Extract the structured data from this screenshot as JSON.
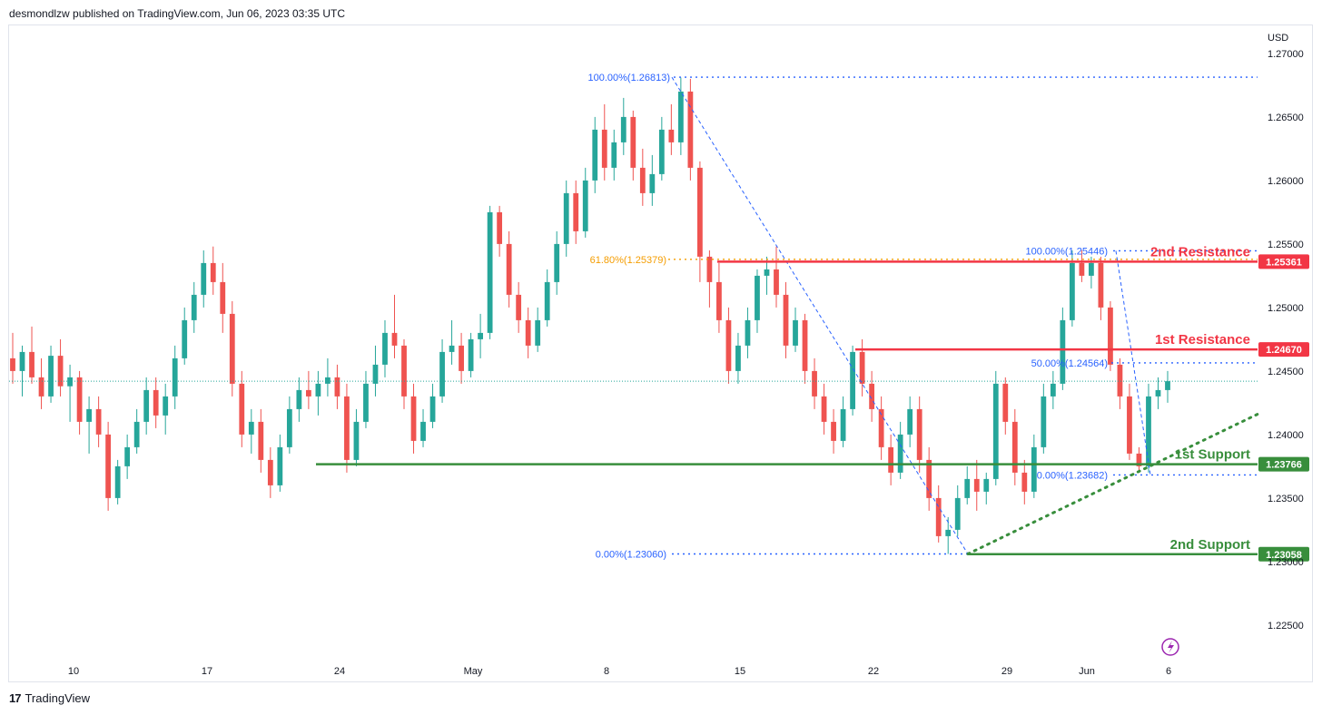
{
  "header": {
    "text": "desmondlzw published on TradingView.com, Jun 06, 2023 03:35 UTC"
  },
  "footer": {
    "brand": "TradingView",
    "logo_glyph": "17"
  },
  "colors": {
    "up": "#26a69a",
    "down": "#ef5350",
    "resistance": "#f23645",
    "support": "#388e3c",
    "fib": "#2962ff",
    "fib618": "#f59d00"
  },
  "chart_data": {
    "type": "candlestick",
    "currency": "USD",
    "ylim": [
      1.2225,
      1.2725
    ],
    "y_ticks": [
      "1.27000",
      "1.26500",
      "1.26000",
      "1.25500",
      "1.25000",
      "1.24500",
      "1.24000",
      "1.23500",
      "1.23000",
      "1.22500"
    ],
    "x_ticks": [
      "10",
      "17",
      "24",
      "May",
      "8",
      "15",
      "22",
      "29",
      "Jun",
      "6"
    ],
    "current_price": 1.2442,
    "levels": [
      {
        "name": "2nd Resistance",
        "value": "1.25361",
        "price": 1.25361,
        "kind": "resistance"
      },
      {
        "name": "1st Resistance",
        "value": "1.24670",
        "price": 1.2467,
        "kind": "resistance"
      },
      {
        "name": "1st Support",
        "value": "1.23766",
        "price": 1.23766,
        "kind": "support"
      },
      {
        "name": "2nd Support",
        "value": "1.23058",
        "price": 1.23058,
        "kind": "support"
      }
    ],
    "fib_labels": [
      {
        "text": "100.00%(1.26813)",
        "price": 1.26813
      },
      {
        "text": "61.80%(1.25379)",
        "price": 1.25379
      },
      {
        "text": "0.00%(1.23060)",
        "price": 1.2306
      },
      {
        "text": "100.00%(1.25446)",
        "price": 1.25446
      },
      {
        "text": "50.00%(1.24564)",
        "price": 1.24564
      },
      {
        "text": "0.00%(1.23682)",
        "price": 1.23682
      }
    ],
    "trendline": {
      "from_price": 1.2306,
      "to_price": 1.2416,
      "style": "dotted"
    },
    "candles": [
      [
        1.246,
        1.248,
        1.244,
        1.245
      ],
      [
        1.245,
        1.247,
        1.243,
        1.2465
      ],
      [
        1.2465,
        1.2485,
        1.244,
        1.2445
      ],
      [
        1.2445,
        1.246,
        1.242,
        1.243
      ],
      [
        1.243,
        1.247,
        1.2425,
        1.2462
      ],
      [
        1.2462,
        1.2475,
        1.243,
        1.2438
      ],
      [
        1.2438,
        1.2455,
        1.241,
        1.2445
      ],
      [
        1.2445,
        1.245,
        1.24,
        1.241
      ],
      [
        1.241,
        1.243,
        1.2385,
        1.242
      ],
      [
        1.242,
        1.243,
        1.239,
        1.24
      ],
      [
        1.24,
        1.241,
        1.234,
        1.235
      ],
      [
        1.235,
        1.238,
        1.2345,
        1.2375
      ],
      [
        1.2375,
        1.24,
        1.2365,
        1.239
      ],
      [
        1.239,
        1.242,
        1.2385,
        1.241
      ],
      [
        1.241,
        1.2445,
        1.24,
        1.2435
      ],
      [
        1.2435,
        1.2445,
        1.2405,
        1.2415
      ],
      [
        1.2415,
        1.244,
        1.24,
        1.243
      ],
      [
        1.243,
        1.247,
        1.242,
        1.246
      ],
      [
        1.246,
        1.25,
        1.2455,
        1.249
      ],
      [
        1.249,
        1.252,
        1.248,
        1.251
      ],
      [
        1.251,
        1.2545,
        1.25,
        1.2535
      ],
      [
        1.2535,
        1.2548,
        1.251,
        1.252
      ],
      [
        1.252,
        1.2535,
        1.248,
        1.2495
      ],
      [
        1.2495,
        1.2505,
        1.243,
        1.244
      ],
      [
        1.244,
        1.245,
        1.239,
        1.24
      ],
      [
        1.24,
        1.242,
        1.2385,
        1.241
      ],
      [
        1.241,
        1.242,
        1.237,
        1.238
      ],
      [
        1.238,
        1.239,
        1.235,
        1.236
      ],
      [
        1.236,
        1.24,
        1.2355,
        1.239
      ],
      [
        1.239,
        1.243,
        1.2385,
        1.242
      ],
      [
        1.242,
        1.2445,
        1.241,
        1.2435
      ],
      [
        1.2435,
        1.245,
        1.242,
        1.243
      ],
      [
        1.243,
        1.245,
        1.2415,
        1.244
      ],
      [
        1.244,
        1.246,
        1.243,
        1.2445
      ],
      [
        1.2445,
        1.2455,
        1.242,
        1.243
      ],
      [
        1.243,
        1.244,
        1.237,
        1.238
      ],
      [
        1.238,
        1.242,
        1.2375,
        1.241
      ],
      [
        1.241,
        1.245,
        1.2405,
        1.244
      ],
      [
        1.244,
        1.247,
        1.243,
        1.2455
      ],
      [
        1.2455,
        1.249,
        1.2445,
        1.248
      ],
      [
        1.248,
        1.251,
        1.246,
        1.247
      ],
      [
        1.247,
        1.2475,
        1.242,
        1.243
      ],
      [
        1.243,
        1.244,
        1.2385,
        1.2395
      ],
      [
        1.2395,
        1.242,
        1.239,
        1.241
      ],
      [
        1.241,
        1.244,
        1.2405,
        1.243
      ],
      [
        1.243,
        1.2475,
        1.2425,
        1.2465
      ],
      [
        1.2465,
        1.249,
        1.2455,
        1.247
      ],
      [
        1.247,
        1.248,
        1.244,
        1.245
      ],
      [
        1.245,
        1.248,
        1.2445,
        1.2475
      ],
      [
        1.2475,
        1.2495,
        1.246,
        1.248
      ],
      [
        1.248,
        1.258,
        1.2475,
        1.2575
      ],
      [
        1.2575,
        1.258,
        1.254,
        1.255
      ],
      [
        1.255,
        1.256,
        1.25,
        1.251
      ],
      [
        1.251,
        1.252,
        1.248,
        1.249
      ],
      [
        1.249,
        1.25,
        1.246,
        1.247
      ],
      [
        1.247,
        1.25,
        1.2465,
        1.249
      ],
      [
        1.249,
        1.253,
        1.2485,
        1.252
      ],
      [
        1.252,
        1.256,
        1.251,
        1.255
      ],
      [
        1.255,
        1.26,
        1.254,
        1.259
      ],
      [
        1.259,
        1.26,
        1.255,
        1.256
      ],
      [
        1.256,
        1.261,
        1.2555,
        1.26
      ],
      [
        1.26,
        1.265,
        1.259,
        1.264
      ],
      [
        1.264,
        1.266,
        1.26,
        1.261
      ],
      [
        1.261,
        1.264,
        1.26,
        1.263
      ],
      [
        1.263,
        1.2665,
        1.262,
        1.265
      ],
      [
        1.265,
        1.2655,
        1.26,
        1.261
      ],
      [
        1.261,
        1.2625,
        1.258,
        1.259
      ],
      [
        1.259,
        1.262,
        1.258,
        1.2605
      ],
      [
        1.2605,
        1.265,
        1.26,
        1.264
      ],
      [
        1.264,
        1.266,
        1.262,
        1.263
      ],
      [
        1.263,
        1.2681,
        1.262,
        1.267
      ],
      [
        1.267,
        1.268,
        1.26,
        1.261
      ],
      [
        1.261,
        1.2615,
        1.252,
        1.254
      ],
      [
        1.254,
        1.2545,
        1.25,
        1.252
      ],
      [
        1.252,
        1.2535,
        1.248,
        1.249
      ],
      [
        1.249,
        1.25,
        1.244,
        1.245
      ],
      [
        1.245,
        1.248,
        1.244,
        1.247
      ],
      [
        1.247,
        1.25,
        1.246,
        1.249
      ],
      [
        1.249,
        1.253,
        1.248,
        1.2525
      ],
      [
        1.2525,
        1.254,
        1.251,
        1.253
      ],
      [
        1.253,
        1.2548,
        1.25,
        1.251
      ],
      [
        1.251,
        1.252,
        1.246,
        1.247
      ],
      [
        1.247,
        1.25,
        1.2465,
        1.249
      ],
      [
        1.249,
        1.2495,
        1.244,
        1.245
      ],
      [
        1.245,
        1.246,
        1.242,
        1.243
      ],
      [
        1.243,
        1.244,
        1.24,
        1.241
      ],
      [
        1.241,
        1.242,
        1.2385,
        1.2395
      ],
      [
        1.2395,
        1.243,
        1.239,
        1.242
      ],
      [
        1.242,
        1.247,
        1.2415,
        1.2465
      ],
      [
        1.2465,
        1.2475,
        1.243,
        1.244
      ],
      [
        1.244,
        1.245,
        1.241,
        1.242
      ],
      [
        1.242,
        1.243,
        1.238,
        1.239
      ],
      [
        1.239,
        1.24,
        1.236,
        1.237
      ],
      [
        1.237,
        1.241,
        1.2365,
        1.24
      ],
      [
        1.24,
        1.243,
        1.239,
        1.242
      ],
      [
        1.242,
        1.243,
        1.237,
        1.238
      ],
      [
        1.238,
        1.239,
        1.234,
        1.235
      ],
      [
        1.235,
        1.236,
        1.2315,
        1.232
      ],
      [
        1.232,
        1.2335,
        1.2306,
        1.2325
      ],
      [
        1.2325,
        1.236,
        1.232,
        1.235
      ],
      [
        1.235,
        1.2375,
        1.2345,
        1.2365
      ],
      [
        1.2365,
        1.238,
        1.234,
        1.2355
      ],
      [
        1.2355,
        1.237,
        1.2345,
        1.2365
      ],
      [
        1.2365,
        1.245,
        1.236,
        1.244
      ],
      [
        1.244,
        1.2445,
        1.24,
        1.241
      ],
      [
        1.241,
        1.242,
        1.236,
        1.237
      ],
      [
        1.237,
        1.238,
        1.2345,
        1.2355
      ],
      [
        1.2355,
        1.24,
        1.235,
        1.239
      ],
      [
        1.239,
        1.244,
        1.2385,
        1.243
      ],
      [
        1.243,
        1.245,
        1.242,
        1.244
      ],
      [
        1.244,
        1.25,
        1.2435,
        1.249
      ],
      [
        1.249,
        1.2545,
        1.2485,
        1.2535
      ],
      [
        1.2535,
        1.2545,
        1.252,
        1.2525
      ],
      [
        1.2525,
        1.254,
        1.2515,
        1.2535
      ],
      [
        1.2535,
        1.254,
        1.249,
        1.25
      ],
      [
        1.25,
        1.2505,
        1.245,
        1.2455
      ],
      [
        1.2455,
        1.246,
        1.242,
        1.243
      ],
      [
        1.243,
        1.244,
        1.238,
        1.2385
      ],
      [
        1.2385,
        1.239,
        1.237,
        1.2375
      ],
      [
        1.2375,
        1.244,
        1.237,
        1.243
      ],
      [
        1.243,
        1.2445,
        1.242,
        1.2435
      ],
      [
        1.2435,
        1.245,
        1.2425,
        1.2442
      ]
    ]
  }
}
